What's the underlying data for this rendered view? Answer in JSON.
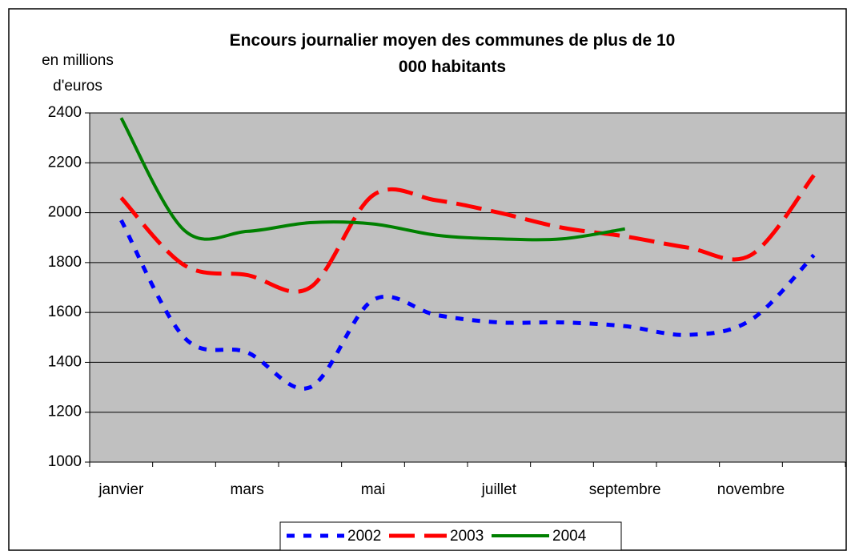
{
  "chart_data": {
    "type": "line",
    "title": "Encours journalier moyen des communes de plus de 10 000 habitants",
    "y_label": "en millions d'euros",
    "categories": [
      "janvier",
      null,
      "mars",
      null,
      "mai",
      null,
      "juillet",
      null,
      "septembre",
      null,
      "novembre",
      null
    ],
    "series": [
      {
        "name": "2002",
        "color": "#0000ff",
        "values": [
          1970,
          1500,
          1440,
          1300,
          1650,
          1590,
          1560,
          1560,
          1545,
          1510,
          1570,
          1830
        ]
      },
      {
        "name": "2003",
        "color": "#ff0000",
        "values": [
          2060,
          1790,
          1750,
          1700,
          2070,
          2050,
          2000,
          1940,
          1905,
          1860,
          1830,
          2150
        ]
      },
      {
        "name": "2004",
        "color": "#008000",
        "values": [
          2380,
          1930,
          1925,
          1960,
          1955,
          1910,
          1895,
          1895,
          1935,
          null,
          null,
          null
        ]
      }
    ],
    "ylim": [
      1000,
      2400
    ],
    "yticks": [
      1000,
      1200,
      1400,
      1600,
      1800,
      2000,
      2200,
      2400
    ],
    "grid": true,
    "legend": "bottom"
  }
}
